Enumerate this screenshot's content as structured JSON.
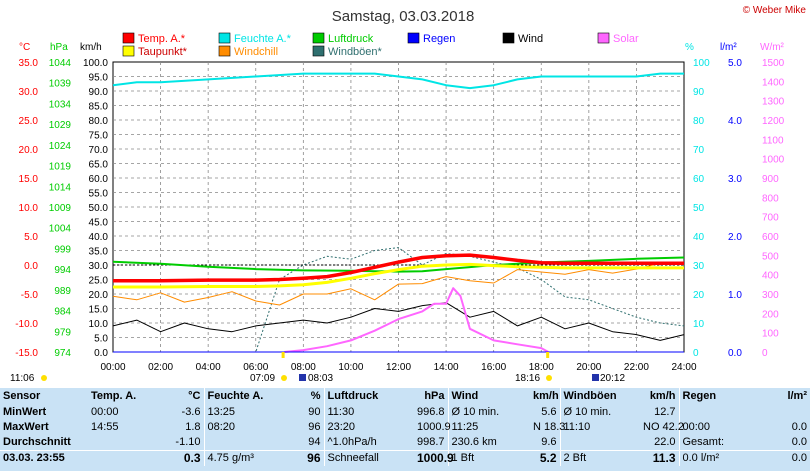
{
  "title": "Samstag, 03.03.2018",
  "copyright": "© Weber Mike",
  "legend": [
    {
      "label": "Temp. A.*",
      "color": "#ff0000"
    },
    {
      "label": "Feuchte A.*",
      "color": "#00e5e5"
    },
    {
      "label": "Luftdruck",
      "color": "#00cc00"
    },
    {
      "label": "Regen",
      "color": "#0000ff"
    },
    {
      "label": "Wind",
      "color": "#000000"
    },
    {
      "label": "Solar",
      "color": "#ff66ff"
    },
    {
      "label": "Taupunkt*",
      "color": "#ffff00"
    },
    {
      "label": "Windchill",
      "color": "#ff8c00"
    },
    {
      "label": "Windböen*",
      "color": "#2f6f6f"
    }
  ],
  "axis_units": {
    "temp": "°C",
    "press": "hPa",
    "wind": "km/h",
    "hum": "%",
    "rain": "l/m²",
    "solar": "W/m²"
  },
  "colors": {
    "temp": "#ff0000",
    "press": "#00cc00",
    "wind": "#000000",
    "hum": "#00e5e5",
    "rain": "#0000ff",
    "solar": "#ff66ff",
    "dew": "#ffff00",
    "chill": "#ff8c00",
    "gust": "#2f6f6f",
    "summary_bg": "#c9e2f5"
  },
  "chart_data": {
    "type": "line",
    "title": "Samstag, 03.03.2018",
    "x_ticks": [
      "00:00",
      "02:00",
      "04:00",
      "06:00",
      "08:00",
      "10:00",
      "12:00",
      "14:00",
      "16:00",
      "18:00",
      "20:00",
      "22:00",
      "24:00"
    ],
    "x_range_hours": [
      0,
      24
    ],
    "axes": {
      "temp": {
        "range": [
          -15,
          35
        ],
        "ticks": [
          "35.0",
          "30.0",
          "25.0",
          "20.0",
          "15.0",
          "10.0",
          "5.0",
          "0.0",
          "-5.0",
          "-10.0",
          "-15.0"
        ]
      },
      "press": {
        "range": [
          974,
          1044
        ],
        "ticks": [
          "1044",
          "1039",
          "1034",
          "1029",
          "1024",
          "1019",
          "1014",
          "1009",
          "1004",
          "999",
          "994",
          "989",
          "984",
          "979",
          "974"
        ]
      },
      "wind": {
        "range": [
          0,
          100
        ],
        "ticks": [
          "100.0",
          "95.0",
          "90.0",
          "85.0",
          "80.0",
          "75.0",
          "70.0",
          "65.0",
          "60.0",
          "55.0",
          "50.0",
          "45.0",
          "40.0",
          "35.0",
          "30.0",
          "25.0",
          "20.0",
          "15.0",
          "10.0",
          "5.0",
          "0.0"
        ]
      },
      "hum": {
        "range": [
          0,
          100
        ],
        "ticks": [
          "100",
          "90",
          "80",
          "70",
          "60",
          "50",
          "40",
          "30",
          "20",
          "10",
          "0"
        ]
      },
      "rain": {
        "range": [
          0,
          5
        ],
        "ticks": [
          "5.0",
          "4.0",
          "3.0",
          "2.0",
          "1.0",
          "0.0"
        ]
      },
      "solar": {
        "range": [
          0,
          1500
        ],
        "ticks": [
          "1500",
          "1400",
          "1300",
          "1200",
          "1100",
          "1000",
          "900",
          "800",
          "700",
          "600",
          "500",
          "400",
          "300",
          "200",
          "100",
          "0"
        ]
      }
    },
    "series": [
      {
        "name": "Temp. A.*",
        "axis": "temp",
        "x": [
          0,
          2,
          4,
          6,
          7,
          8,
          9,
          10,
          11,
          12,
          13,
          14,
          15,
          16,
          17,
          18,
          19,
          20,
          21,
          22,
          23,
          24
        ],
        "values": [
          -2.7,
          -2.7,
          -2.6,
          -2.6,
          -2.5,
          -2.3,
          -2.0,
          -1.3,
          -0.4,
          0.5,
          1.3,
          1.6,
          1.7,
          1.3,
          0.8,
          0.4,
          0.3,
          0.3,
          0.3,
          0.3,
          0.3,
          0.3
        ]
      },
      {
        "name": "Taupunkt*",
        "axis": "temp",
        "x": [
          0,
          2,
          4,
          6,
          7,
          8,
          9,
          10,
          11,
          12,
          13,
          14,
          15,
          16,
          17,
          18,
          19,
          20,
          21,
          22,
          23,
          24
        ],
        "values": [
          -3.8,
          -3.8,
          -3.7,
          -3.7,
          -3.6,
          -3.4,
          -3.0,
          -2.3,
          -1.5,
          -0.8,
          -0.2,
          0.0,
          0.1,
          -0.1,
          -0.3,
          -0.4,
          -0.5,
          -0.5,
          -0.5,
          -0.5,
          -0.5,
          -0.5
        ]
      },
      {
        "name": "Feuchte A.*",
        "axis": "hum",
        "x": [
          0,
          1,
          2,
          4,
          6,
          8,
          10,
          11,
          12,
          13,
          14,
          15,
          16,
          17,
          18,
          20,
          22,
          23,
          24
        ],
        "values": [
          92,
          93,
          93,
          94,
          95,
          96,
          96,
          96,
          95,
          94,
          92,
          91,
          92,
          94,
          95,
          95,
          95,
          96,
          96
        ]
      },
      {
        "name": "Luftdruck",
        "axis": "press",
        "x": [
          0,
          2,
          4,
          6,
          8,
          10,
          11,
          12,
          13,
          14,
          15,
          16,
          18,
          20,
          22,
          24
        ],
        "values": [
          995.8,
          995.3,
          994.6,
          994.0,
          993.7,
          993.6,
          993.5,
          993.4,
          993.5,
          994.0,
          994.5,
          995.0,
          995.6,
          996.0,
          996.5,
          996.8
        ]
      },
      {
        "name": "Wind",
        "axis": "wind",
        "x": [
          0,
          1,
          2,
          3,
          4,
          5,
          6,
          7,
          8,
          9,
          10,
          11,
          12,
          13,
          14,
          15,
          16,
          17,
          18,
          19,
          20,
          21,
          22,
          23,
          24
        ],
        "values": [
          9,
          11,
          7,
          10,
          8,
          7,
          9,
          10,
          11,
          10,
          12,
          15,
          14,
          16,
          17,
          12,
          14,
          9,
          12,
          8,
          10,
          7,
          6,
          4,
          6
        ]
      },
      {
        "name": "Windchill",
        "axis": "temp",
        "x": [
          0,
          1,
          2,
          3,
          4,
          5,
          6,
          7,
          8,
          9,
          10,
          11,
          12,
          13,
          14,
          15,
          16,
          17,
          18,
          19,
          20,
          21,
          22,
          23,
          24
        ],
        "values": [
          -5.4,
          -6.0,
          -4.8,
          -6.4,
          -5.6,
          -4.6,
          -6.2,
          -6.9,
          -5.0,
          -5.0,
          -4.1,
          -6.0,
          -3.3,
          -3.2,
          -2.0,
          -2.7,
          -3.1,
          -0.8,
          -1.2,
          -1.6,
          -0.8,
          -1.4,
          -0.7,
          0.3,
          0.3
        ]
      },
      {
        "name": "Windböen*",
        "axis": "wind",
        "x": [
          0,
          3,
          6,
          7,
          8,
          9,
          10,
          11,
          12,
          13,
          14,
          15,
          16,
          17,
          18,
          19,
          20,
          21,
          22,
          23,
          24
        ],
        "values": [
          0,
          0,
          0,
          25,
          30,
          33,
          32,
          35,
          36,
          30,
          34,
          33,
          31,
          29,
          25,
          19,
          18,
          15,
          12,
          10,
          9
        ]
      },
      {
        "name": "Solar",
        "axis": "solar",
        "x": [
          7.2,
          8,
          9,
          10,
          11,
          12,
          13,
          13.5,
          14,
          14.3,
          14.6,
          15,
          16,
          17,
          18,
          18.3
        ],
        "values": [
          0,
          10,
          30,
          60,
          110,
          170,
          210,
          250,
          250,
          330,
          290,
          120,
          60,
          40,
          20,
          0
        ]
      },
      {
        "name": "Regen",
        "axis": "rain",
        "x": [
          0,
          24
        ],
        "values": [
          0,
          0
        ]
      }
    ]
  },
  "sun": {
    "left_time": "11:06",
    "rise": "07:09",
    "rise2": "08:03",
    "set": "18:16",
    "set2": "20:12"
  },
  "summary": {
    "headers": {
      "sensor": "Sensor",
      "temp": "Temp. A.",
      "temp_unit": "°C",
      "hum": "Feuchte A.",
      "hum_unit": "%",
      "press": "Luftdruck",
      "press_unit": "hPa",
      "wind": "Wind",
      "wind_unit": "km/h",
      "gust": "Windböen",
      "gust_unit": "km/h",
      "rain": "Regen",
      "rain_unit": "l/m²"
    },
    "rows": [
      {
        "label": "MinWert",
        "temp_t": "00:00",
        "temp_v": "-3.6",
        "hum_t": "13:25",
        "hum_v": "90",
        "press_t": "11:30",
        "press_v": "996.8",
        "wind_t": "Ø 10 min.",
        "wind_v": "5.6",
        "gust_t": "Ø 10 min.",
        "gust_v": "12.7",
        "rain_t": "",
        "rain_v": ""
      },
      {
        "label": "MaxWert",
        "temp_t": "14:55",
        "temp_v": "1.8",
        "hum_t": "08:20",
        "hum_v": "96",
        "press_t": "23:20",
        "press_v": "1000.9",
        "wind_t": "11:25",
        "wind_v": "N 18.3",
        "gust_t": "11:10",
        "gust_v": "NO 42.2",
        "rain_t": "00:00",
        "rain_v": "0.0"
      },
      {
        "label": "Durchschnitt",
        "temp_t": "",
        "temp_v": "-1.10",
        "hum_t": "",
        "hum_v": "94",
        "press_t": "^1.0hPa/h",
        "press_v": "998.7",
        "wind_t": "230.6 km",
        "wind_v": "9.6",
        "gust_t": "",
        "gust_v": "22.0",
        "rain_t": "Gesamt:",
        "rain_v": "0.0"
      },
      {
        "label": "03.03. 23:55",
        "temp_t": "",
        "temp_v": "0.3",
        "hum_t": "4.75 g/m³",
        "hum_v": "96",
        "press_t": "Schneefall",
        "press_v": "1000.9",
        "wind_t": "1 Bft",
        "wind_v": "5.2",
        "gust_t": "2 Bft",
        "gust_v": "11.3",
        "rain_t": "0.0 l/m²",
        "rain_v": "0.0"
      }
    ]
  }
}
